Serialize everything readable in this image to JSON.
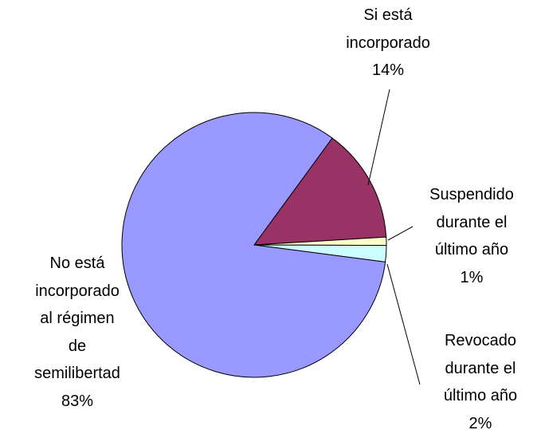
{
  "chart_data": {
    "type": "pie",
    "categories": [
      "Si está\nincorporado",
      "Suspendido\ndurante el\núltimo año",
      "Revocado\ndurante el\núltimo año",
      "No está\nincorporado\nal régimen\nde\nsemilibertad"
    ],
    "values": [
      14,
      1,
      2,
      83
    ],
    "value_labels": [
      "14%",
      "1%",
      "2%",
      "83%"
    ],
    "colors": [
      "#993366",
      "#FFFFCC",
      "#CCFFFF",
      "#9999FF"
    ]
  }
}
